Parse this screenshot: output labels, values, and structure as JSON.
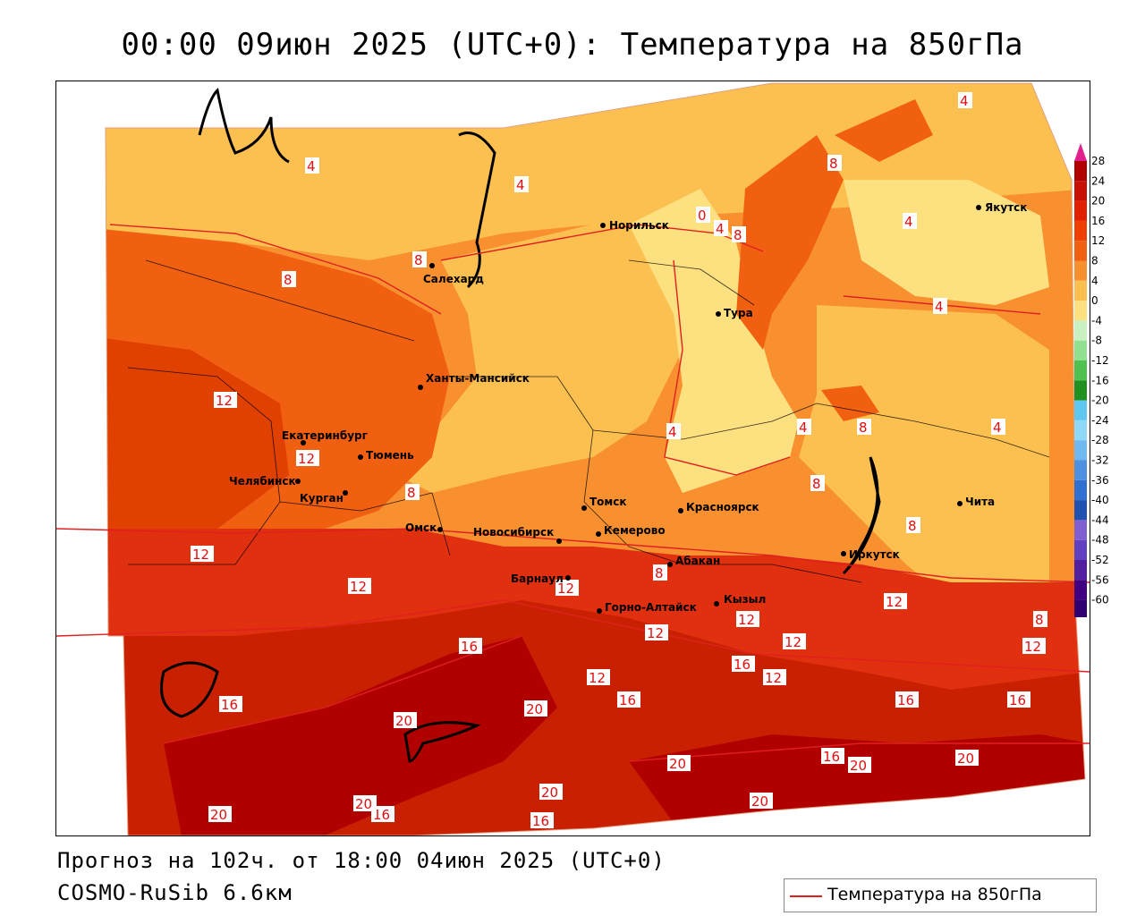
{
  "header": {
    "title": "00:00 09июн 2025 (UTC+0): Температура на 850гПа"
  },
  "footer": {
    "forecast_line": "Прогноз на 102ч. от 18:00 04июн 2025 (UTC+0)",
    "model_line": "COSMO-RuSib 6.6км"
  },
  "legend": {
    "series_label": "Температура на 850гПа",
    "line_color": "#e02020"
  },
  "colorbar": {
    "ticks": [
      "28",
      "24",
      "20",
      "16",
      "12",
      "8",
      "4",
      "0",
      "-4",
      "-8",
      "-12",
      "-16",
      "-20",
      "-24",
      "-28",
      "-32",
      "-36",
      "-40",
      "-44",
      "-48",
      "-52",
      "-56",
      "-60"
    ],
    "colors": [
      "#b00000",
      "#c81000",
      "#e02000",
      "#f04000",
      "#f06010",
      "#f89030",
      "#fcc050",
      "#fde080",
      "#c8f0c0",
      "#90e090",
      "#50c050",
      "#209020",
      "#60c8f0",
      "#90d8f8",
      "#70b8f0",
      "#5090e0",
      "#3070d0",
      "#2050b0",
      "#8060d0",
      "#6040c0",
      "#5020a0",
      "#400080",
      "#300070"
    ],
    "top_arrow_color": "#e0208c",
    "bottom_arrow_color": "#a020a0"
  },
  "cities": [
    {
      "name": "Норильск"
    },
    {
      "name": "Якутск"
    },
    {
      "name": "Салехард"
    },
    {
      "name": "Тура"
    },
    {
      "name": "Ханты-Мансийск"
    },
    {
      "name": "Екатеринбург"
    },
    {
      "name": "Тюмень"
    },
    {
      "name": "Челябинск"
    },
    {
      "name": "Курган"
    },
    {
      "name": "Омск"
    },
    {
      "name": "Новосибирск"
    },
    {
      "name": "Томск"
    },
    {
      "name": "Кемерово"
    },
    {
      "name": "Красноярск"
    },
    {
      "name": "Абакан"
    },
    {
      "name": "Барнаул"
    },
    {
      "name": "Горно-Алтайск"
    },
    {
      "name": "Кызыл"
    },
    {
      "name": "Иркутск"
    },
    {
      "name": "Чита"
    }
  ],
  "isolines": {
    "4": "4",
    "8": "8",
    "12": "12",
    "16": "16",
    "20": "20",
    "0": "0"
  }
}
